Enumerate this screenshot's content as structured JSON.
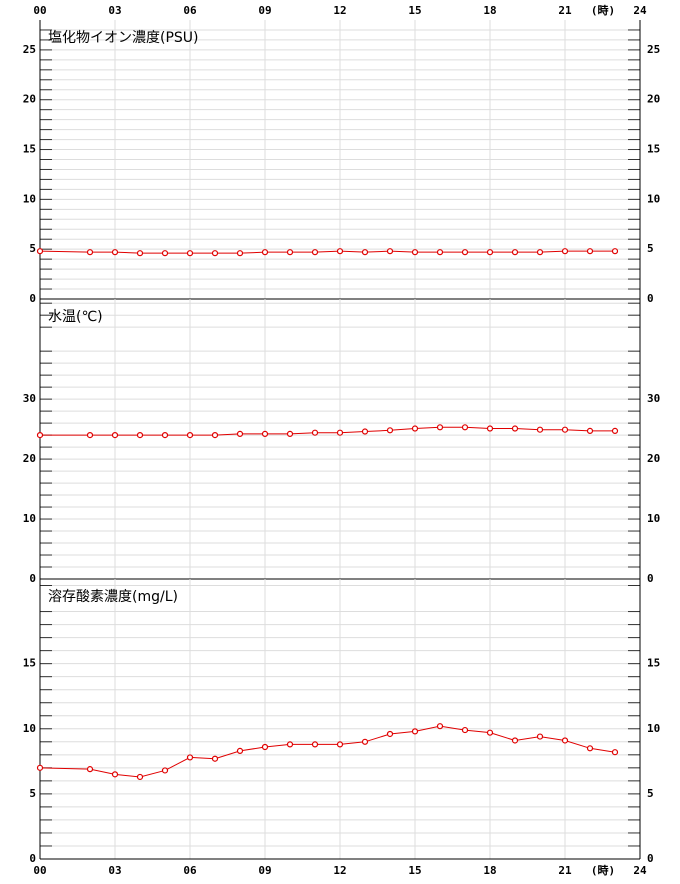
{
  "chart_data": [
    {
      "type": "line",
      "title": "塩化物イオン濃度(PSU)",
      "x_unit": "(時)",
      "x": [
        0,
        2,
        3,
        4,
        5,
        6,
        7,
        8,
        9,
        10,
        11,
        12,
        13,
        14,
        15,
        16,
        17,
        18,
        19,
        20,
        21,
        22,
        23
      ],
      "values": [
        4.8,
        4.7,
        4.7,
        4.6,
        4.6,
        4.6,
        4.6,
        4.6,
        4.7,
        4.7,
        4.7,
        4.8,
        4.7,
        4.8,
        4.7,
        4.7,
        4.7,
        4.7,
        4.7,
        4.7,
        4.8,
        4.8,
        4.8
      ],
      "color": "#e00000",
      "xlim": [
        0,
        24
      ],
      "xticks": [
        {
          "value": 0,
          "label": "00"
        },
        {
          "value": 3,
          "label": "03"
        },
        {
          "value": 6,
          "label": "06"
        },
        {
          "value": 9,
          "label": "09"
        },
        12,
        15,
        18,
        21,
        24
      ],
      "ylim": [
        0,
        28
      ],
      "yticks": [
        0,
        5,
        10,
        15,
        20,
        25
      ],
      "grid": true
    },
    {
      "type": "line",
      "title": "水温(℃)",
      "x": [
        0,
        2,
        3,
        4,
        5,
        6,
        7,
        8,
        9,
        10,
        11,
        12,
        13,
        14,
        15,
        16,
        17,
        18,
        19,
        20,
        21,
        22,
        23
      ],
      "values": [
        24.0,
        24.0,
        24.0,
        24.0,
        24.0,
        24.0,
        24.0,
        24.2,
        24.2,
        24.2,
        24.4,
        24.4,
        24.6,
        24.8,
        25.1,
        25.3,
        25.3,
        25.1,
        25.1,
        24.9,
        24.9,
        24.7,
        24.7
      ],
      "color": "#e00000",
      "xlim": [
        0,
        24
      ],
      "ylim": [
        0,
        46.7
      ],
      "yticks": [
        0,
        10,
        20,
        30
      ],
      "grid": true
    },
    {
      "type": "line",
      "title": "溶存酸素濃度(mg/L)",
      "x_unit": "(時)",
      "x": [
        0,
        2,
        3,
        4,
        5,
        6,
        7,
        8,
        9,
        10,
        11,
        12,
        13,
        14,
        15,
        16,
        17,
        18,
        19,
        20,
        21,
        22,
        23
      ],
      "values": [
        7.0,
        6.9,
        6.5,
        6.3,
        6.8,
        7.8,
        7.7,
        8.3,
        8.6,
        8.8,
        8.8,
        8.8,
        9.0,
        9.6,
        9.8,
        10.2,
        9.9,
        9.7,
        9.1,
        9.4,
        9.1,
        8.5,
        8.2
      ],
      "color": "#e00000",
      "xlim": [
        0,
        24
      ],
      "xticks": [
        {
          "value": 0,
          "label": "00"
        },
        {
          "value": 3,
          "label": "03"
        },
        {
          "value": 6,
          "label": "06"
        },
        {
          "value": 9,
          "label": "09"
        },
        12,
        15,
        18,
        21,
        24
      ],
      "ylim": [
        0,
        21.5
      ],
      "yticks": [
        0,
        5,
        10,
        15
      ],
      "grid": true
    }
  ]
}
